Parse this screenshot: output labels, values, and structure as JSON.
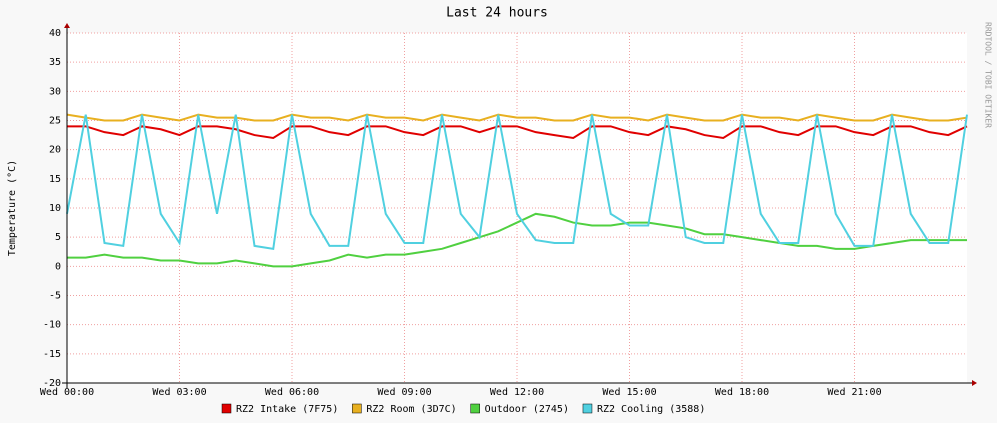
{
  "chart_data": {
    "type": "line",
    "title": "Last 24 hours",
    "y_label": "Temperature (°C)",
    "watermark": "RRDTOOL / TOBI OETIKER",
    "x": [
      0,
      0.5,
      1,
      1.5,
      2,
      2.5,
      3,
      3.5,
      4,
      4.5,
      5,
      5.5,
      6,
      6.5,
      7,
      7.5,
      8,
      8.5,
      9,
      9.5,
      10,
      10.5,
      11,
      11.5,
      12,
      12.5,
      13,
      13.5,
      14,
      14.5,
      15,
      15.5,
      16,
      16.5,
      17,
      17.5,
      18,
      18.5,
      19,
      19.5,
      20,
      20.5,
      21,
      21.5,
      22,
      22.5,
      23,
      23.5,
      24
    ],
    "xlim": [
      0,
      24
    ],
    "xticks": [
      {
        "value": 0,
        "label": "Wed 00:00"
      },
      {
        "value": 3,
        "label": "Wed 03:00"
      },
      {
        "value": 6,
        "label": "Wed 06:00"
      },
      {
        "value": 9,
        "label": "Wed 09:00"
      },
      {
        "value": 12,
        "label": "Wed 12:00"
      },
      {
        "value": 15,
        "label": "Wed 15:00"
      },
      {
        "value": 18,
        "label": "Wed 18:00"
      },
      {
        "value": 21,
        "label": "Wed 21:00"
      }
    ],
    "ylim": [
      -20,
      40
    ],
    "yticks": [
      -20,
      -15,
      -10,
      -5,
      0,
      5,
      10,
      15,
      20,
      25,
      30,
      35,
      40
    ],
    "grid": true,
    "series": [
      {
        "name": "RZ2 Intake (7F75)",
        "color": "#e00000",
        "values": [
          24,
          24,
          23,
          22.5,
          24,
          23.5,
          22.5,
          24,
          24,
          23.5,
          22.5,
          22,
          24,
          24,
          23,
          22.5,
          24,
          24,
          23,
          22.5,
          24,
          24,
          23,
          24,
          24,
          23,
          22.5,
          22,
          24,
          24,
          23,
          22.5,
          24,
          23.5,
          22.5,
          22,
          24,
          24,
          23,
          22.5,
          24,
          24,
          23,
          22.5,
          24,
          24,
          23,
          22.5,
          24
        ]
      },
      {
        "name": "RZ2 Room (3D7C)",
        "color": "#e8b020",
        "values": [
          26,
          25.5,
          25,
          25,
          26,
          25.5,
          25,
          26,
          25.5,
          25.5,
          25,
          25,
          26,
          25.5,
          25.5,
          25,
          26,
          25.5,
          25.5,
          25,
          26,
          25.5,
          25,
          26,
          25.5,
          25.5,
          25,
          25,
          26,
          25.5,
          25.5,
          25,
          26,
          25.5,
          25,
          25,
          26,
          25.5,
          25.5,
          25,
          26,
          25.5,
          25,
          25,
          26,
          25.5,
          25,
          25,
          25.5
        ]
      },
      {
        "name": "Outdoor (2745)",
        "color": "#50d040",
        "values": [
          1.5,
          1.5,
          2,
          1.5,
          1.5,
          1,
          1,
          0.5,
          0.5,
          1,
          0.5,
          0,
          0,
          0.5,
          1,
          2,
          1.5,
          2,
          2,
          2.5,
          3,
          4,
          5,
          6,
          7.5,
          9,
          8.5,
          7.5,
          7,
          7,
          7.5,
          7.5,
          7,
          6.5,
          5.5,
          5.5,
          5,
          4.5,
          4,
          3.5,
          3.5,
          3,
          3,
          3.5,
          4,
          4.5,
          4.5,
          4.5,
          4.5
        ]
      },
      {
        "name": "RZ2 Cooling (3588)",
        "color": "#50d0e0",
        "values": [
          9,
          26,
          4,
          3.5,
          26,
          9,
          4,
          26,
          9,
          26,
          3.5,
          3,
          26,
          9,
          3.5,
          3.5,
          26,
          9,
          4,
          4,
          26,
          9,
          5,
          26,
          9,
          4.5,
          4,
          4,
          26,
          9,
          7,
          7,
          26,
          5,
          4,
          4,
          26,
          9,
          4,
          4,
          26,
          9,
          3.5,
          3.5,
          26,
          9,
          4,
          4,
          26
        ]
      }
    ]
  }
}
